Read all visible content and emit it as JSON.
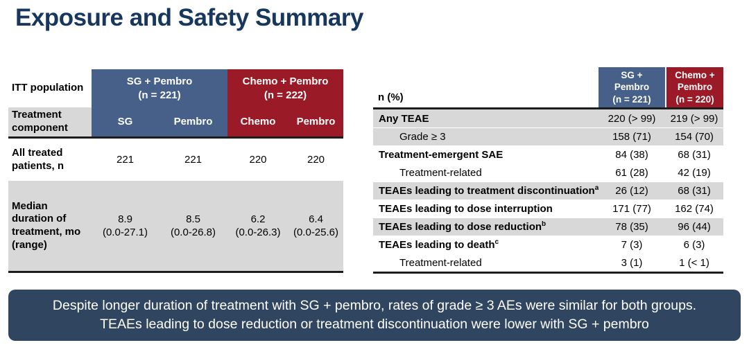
{
  "title": "Exposure and Safety Summary",
  "colors": {
    "title_navy": "#17375e",
    "header_blue": "#46608a",
    "header_red": "#9a1b27",
    "row_gray": "#d8d8d8",
    "border_dark": "#1c1c1c",
    "callout_navy": "#304560"
  },
  "exposure_table": {
    "corner_label": "ITT population",
    "component_row_label": "Treatment component",
    "groups": [
      {
        "name": "SG + Pembro",
        "n": "(n = 221)"
      },
      {
        "name": "Chemo + Pembro",
        "n": "(n = 222)"
      }
    ],
    "components": [
      "SG",
      "Pembro",
      "Chemo",
      "Pembro"
    ],
    "all_treated_row": {
      "label": "All treated patients, n",
      "values": [
        "221",
        "221",
        "220",
        "220"
      ]
    },
    "median_duration_row": {
      "label": "Median duration of treatment, mo (range)",
      "medians": [
        "8.9",
        "8.5",
        "6.2",
        "6.4"
      ],
      "ranges": [
        "(0.0-27.1)",
        "(0.0-26.8)",
        "(0.0-26.3)",
        "(0.0-25.6)"
      ]
    }
  },
  "safety_table": {
    "corner_label": "n (%)",
    "columns": [
      {
        "line1": "SG +",
        "line2": "Pembro",
        "line3": "(n = 221)"
      },
      {
        "line1": "Chemo +",
        "line2": "Pembro",
        "line3": "(n = 220)"
      }
    ],
    "rows": [
      {
        "label": "Any TEAE",
        "sup": "",
        "sg_pembro": "220 (> 99)",
        "chemo_pembro": "219 (> 99)"
      },
      {
        "label": "Grade ≥ 3",
        "sup": "",
        "sg_pembro": "158 (71)",
        "chemo_pembro": "154 (70)"
      },
      {
        "label": "Treatment-emergent SAE",
        "sup": "",
        "sg_pembro": "84 (38)",
        "chemo_pembro": "68 (31)"
      },
      {
        "label": "Treatment-related",
        "sup": "",
        "sg_pembro": "61 (28)",
        "chemo_pembro": "42 (19)"
      },
      {
        "label": "TEAEs leading to treatment discontinuation",
        "sup": "a",
        "sg_pembro": "26 (12)",
        "chemo_pembro": "68 (31)"
      },
      {
        "label": "TEAEs leading to dose interruption",
        "sup": "",
        "sg_pembro": "171 (77)",
        "chemo_pembro": "162 (74)"
      },
      {
        "label": "TEAEs leading to dose reduction",
        "sup": "b",
        "sg_pembro": "78 (35)",
        "chemo_pembro": "96 (44)"
      },
      {
        "label": "TEAEs leading to death",
        "sup": "c",
        "sg_pembro": "7 (3)",
        "chemo_pembro": "6 (3)"
      },
      {
        "label": "Treatment-related",
        "sup": "",
        "sg_pembro": "3 (1)",
        "chemo_pembro": "1 (< 1)"
      }
    ]
  },
  "callout": {
    "text": "Despite longer duration of treatment with SG + pembro, rates of grade ≥ 3 AEs were similar for both groups. TEAEs leading to dose reduction or treatment discontinuation were lower with SG + pembro"
  }
}
